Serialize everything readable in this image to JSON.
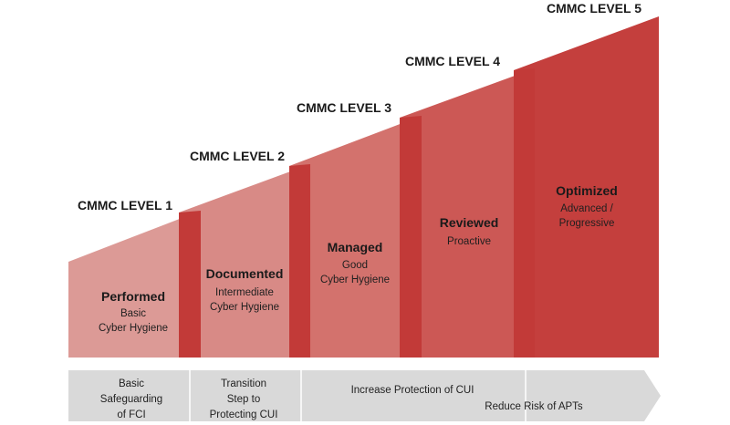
{
  "diagram": {
    "levels": [
      {
        "title": "CMMC LEVEL 1",
        "name": "Performed",
        "desc_lines": [
          "Basic",
          "Cyber Hygiene"
        ],
        "color": "#dc9a96"
      },
      {
        "title": "CMMC LEVEL 2",
        "name": "Documented",
        "desc_lines": [
          "Intermediate",
          "Cyber Hygiene"
        ],
        "color": "#d88a86"
      },
      {
        "title": "CMMC LEVEL 3",
        "name": "Managed",
        "desc_lines": [
          "Good",
          "Cyber Hygiene"
        ],
        "color": "#d3726d"
      },
      {
        "title": "CMMC LEVEL 4",
        "name": "Reviewed",
        "desc_lines": [
          "Proactive"
        ],
        "color": "#cc5855"
      },
      {
        "title": "CMMC LEVEL 5",
        "name": "Optimized",
        "desc_lines": [
          "Advanced /",
          "Progressive"
        ],
        "color": "#c43f3d"
      }
    ],
    "overlap_color": "#c23a38",
    "arrow": {
      "fill": "#d9d9d9",
      "divider_color": "#ffffff",
      "sections": [
        {
          "lines": [
            "Basic",
            "Safeguarding",
            "of FCI"
          ]
        },
        {
          "lines": [
            "Transition",
            "Step to",
            "Protecting CUI"
          ]
        }
      ],
      "labels": [
        {
          "text": "Increase Protection of CUI"
        },
        {
          "text": "Reduce Risk of APTs"
        }
      ]
    }
  }
}
